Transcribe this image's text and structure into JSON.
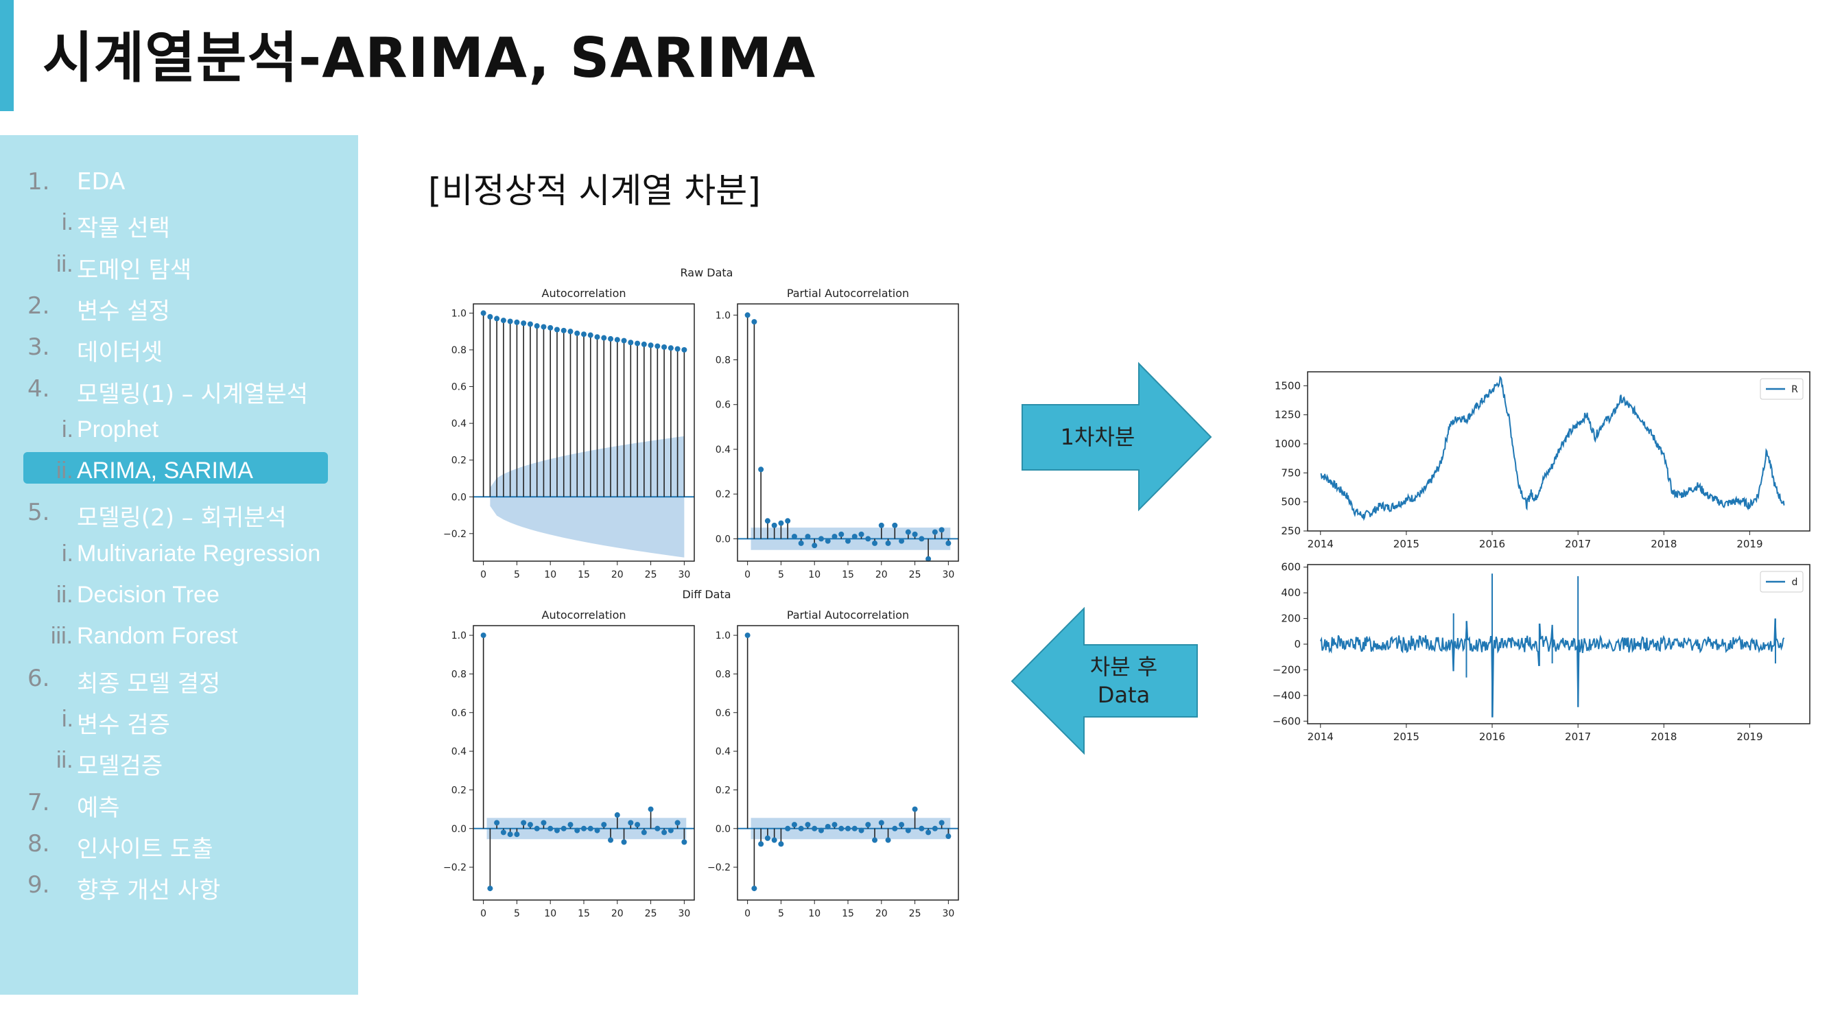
{
  "slide": {
    "title": "시계열분석-ARIMA, SARIMA",
    "section_title": "[비정상적 시계열 차분]"
  },
  "sidebar": {
    "items": [
      {
        "num": "1.",
        "label": "EDA",
        "level": 1
      },
      {
        "num": "i.",
        "label": "작물 선택",
        "level": 2
      },
      {
        "num": "ii.",
        "label": "도메인 탐색",
        "level": 2
      },
      {
        "num": "2.",
        "label": "변수 설정",
        "level": 1
      },
      {
        "num": "3.",
        "label": "데이터셋",
        "level": 1
      },
      {
        "num": "4.",
        "label": "모델링(1) – 시계열분석",
        "level": 1
      },
      {
        "num": "i.",
        "label": "Prophet",
        "level": 2
      },
      {
        "num": "ii.",
        "label": "ARIMA, SARIMA",
        "level": 2,
        "active": true
      },
      {
        "num": "5.",
        "label": "모델링(2) – 회귀분석",
        "level": 1
      },
      {
        "num": "i.",
        "label": "Multivariate Regression",
        "level": 2
      },
      {
        "num": "ii.",
        "label": "Decision Tree",
        "level": 2
      },
      {
        "num": "iii.",
        "label": "Random Forest",
        "level": 2
      },
      {
        "num": "6.",
        "label": "최종 모델 결정",
        "level": 1
      },
      {
        "num": "i.",
        "label": "변수 검증",
        "level": 2
      },
      {
        "num": "ii.",
        "label": "모델검증",
        "level": 2
      },
      {
        "num": "7.",
        "label": "예측",
        "level": 1
      },
      {
        "num": "8.",
        "label": "인사이트 도출",
        "level": 1
      },
      {
        "num": "9.",
        "label": "향후 개선 사항",
        "level": 1
      }
    ]
  },
  "arrows": {
    "right_label": "1차차분",
    "left_label_line1": "차분 후",
    "left_label_line2": "Data",
    "fill": "#3fb5d3"
  },
  "colors": {
    "accent": "#3fb5d3",
    "sidebar_bg": "#b2e3ee",
    "series": "#1f77b4",
    "confidence_band": "#aecde8"
  },
  "chart_data": [
    {
      "type": "bar",
      "group_title": "Raw Data",
      "title": "Autocorrelation",
      "x": [
        0,
        1,
        2,
        3,
        4,
        5,
        6,
        7,
        8,
        9,
        10,
        11,
        12,
        13,
        14,
        15,
        16,
        17,
        18,
        19,
        20,
        21,
        22,
        23,
        24,
        25,
        26,
        27,
        28,
        29,
        30
      ],
      "values": [
        1.0,
        0.98,
        0.97,
        0.96,
        0.955,
        0.95,
        0.945,
        0.94,
        0.93,
        0.925,
        0.92,
        0.91,
        0.905,
        0.9,
        0.89,
        0.885,
        0.88,
        0.87,
        0.865,
        0.86,
        0.855,
        0.85,
        0.84,
        0.835,
        0.83,
        0.825,
        0.82,
        0.815,
        0.81,
        0.805,
        0.8
      ],
      "confidence_upper_end": 0.33,
      "ylim": [
        -0.35,
        1.05
      ],
      "yticks": [
        -0.2,
        0.0,
        0.2,
        0.4,
        0.6,
        0.8,
        1.0
      ],
      "ytick_labels": [
        "−0.2",
        "0.0",
        "0.2",
        "0.4",
        "0.6",
        "0.8",
        "1.0"
      ],
      "xticks": [
        0,
        5,
        10,
        15,
        20,
        25,
        30
      ]
    },
    {
      "type": "bar",
      "title": "Partial Autocorrelation",
      "x": [
        0,
        1,
        2,
        3,
        4,
        5,
        6,
        7,
        8,
        9,
        10,
        11,
        12,
        13,
        14,
        15,
        16,
        17,
        18,
        19,
        20,
        21,
        22,
        23,
        24,
        25,
        26,
        27,
        28,
        29,
        30
      ],
      "values": [
        1.0,
        0.97,
        0.31,
        0.08,
        0.06,
        0.07,
        0.08,
        0.01,
        -0.02,
        0.01,
        -0.03,
        0.0,
        -0.01,
        0.01,
        0.02,
        -0.01,
        0.01,
        0.02,
        0.0,
        -0.02,
        0.06,
        -0.02,
        0.06,
        -0.01,
        0.03,
        0.02,
        0.0,
        -0.09,
        0.03,
        0.04,
        -0.02
      ],
      "confidence": 0.05,
      "ylim": [
        -0.1,
        1.05
      ],
      "yticks": [
        0.0,
        0.2,
        0.4,
        0.6,
        0.8,
        1.0
      ],
      "ytick_labels": [
        "0.0",
        "0.2",
        "0.4",
        "0.6",
        "0.8",
        "1.0"
      ],
      "xticks": [
        0,
        5,
        10,
        15,
        20,
        25,
        30
      ]
    },
    {
      "type": "bar",
      "group_title": "Diff Data",
      "title": "Autocorrelation",
      "x": [
        0,
        1,
        2,
        3,
        4,
        5,
        6,
        7,
        8,
        9,
        10,
        11,
        12,
        13,
        14,
        15,
        16,
        17,
        18,
        19,
        20,
        21,
        22,
        23,
        24,
        25,
        26,
        27,
        28,
        29,
        30
      ],
      "values": [
        1.0,
        -0.31,
        0.03,
        -0.02,
        -0.03,
        -0.03,
        0.03,
        0.02,
        0.0,
        0.03,
        0.0,
        -0.01,
        0.0,
        0.02,
        -0.01,
        0.0,
        0.0,
        -0.01,
        0.02,
        -0.06,
        0.07,
        -0.07,
        0.03,
        0.02,
        -0.02,
        0.1,
        0.0,
        -0.02,
        -0.01,
        0.03,
        -0.07
      ],
      "confidence": 0.055,
      "ylim": [
        -0.37,
        1.05
      ],
      "yticks": [
        -0.2,
        0.0,
        0.2,
        0.4,
        0.6,
        0.8,
        1.0
      ],
      "ytick_labels": [
        "−0.2",
        "0.0",
        "0.2",
        "0.4",
        "0.6",
        "0.8",
        "1.0"
      ],
      "xticks": [
        0,
        5,
        10,
        15,
        20,
        25,
        30
      ]
    },
    {
      "type": "bar",
      "title": "Partial Autocorrelation",
      "x": [
        0,
        1,
        2,
        3,
        4,
        5,
        6,
        7,
        8,
        9,
        10,
        11,
        12,
        13,
        14,
        15,
        16,
        17,
        18,
        19,
        20,
        21,
        22,
        23,
        24,
        25,
        26,
        27,
        28,
        29,
        30
      ],
      "values": [
        1.0,
        -0.31,
        -0.08,
        -0.05,
        -0.06,
        -0.08,
        0.0,
        0.02,
        0.0,
        0.02,
        0.0,
        -0.01,
        0.01,
        0.02,
        0.0,
        0.0,
        0.0,
        -0.01,
        0.02,
        -0.06,
        0.03,
        -0.06,
        0.0,
        0.02,
        -0.01,
        0.1,
        0.0,
        -0.02,
        0.0,
        0.03,
        -0.04
      ],
      "confidence": 0.055,
      "ylim": [
        -0.37,
        1.05
      ],
      "yticks": [
        -0.2,
        0.0,
        0.2,
        0.4,
        0.6,
        0.8,
        1.0
      ],
      "ytick_labels": [
        "−0.2",
        "0.0",
        "0.2",
        "0.4",
        "0.6",
        "0.8",
        "1.0"
      ],
      "xticks": [
        0,
        5,
        10,
        15,
        20,
        25,
        30
      ]
    },
    {
      "type": "line",
      "legend": "R",
      "legend_position": "top-right",
      "x_range": [
        2013.85,
        2019.7
      ],
      "xticks": [
        2014,
        2015,
        2016,
        2017,
        2018,
        2019
      ],
      "ylim": [
        250,
        1620
      ],
      "yticks": [
        250,
        500,
        750,
        1000,
        1250,
        1500
      ],
      "x": [
        2014.0,
        2014.1,
        2014.2,
        2014.3,
        2014.4,
        2014.5,
        2014.6,
        2014.7,
        2014.8,
        2014.9,
        2015.0,
        2015.1,
        2015.2,
        2015.3,
        2015.4,
        2015.5,
        2015.6,
        2015.7,
        2015.8,
        2015.9,
        2016.0,
        2016.1,
        2016.2,
        2016.3,
        2016.4,
        2016.45,
        2016.5,
        2016.6,
        2016.7,
        2016.8,
        2016.9,
        2017.0,
        2017.1,
        2017.2,
        2017.3,
        2017.4,
        2017.5,
        2017.6,
        2017.7,
        2017.8,
        2017.9,
        2018.0,
        2018.1,
        2018.2,
        2018.3,
        2018.4,
        2018.5,
        2018.6,
        2018.7,
        2018.8,
        2018.9,
        2019.0,
        2019.1,
        2019.2,
        2019.3,
        2019.4
      ],
      "values": [
        740,
        690,
        620,
        560,
        420,
        380,
        410,
        470,
        450,
        480,
        520,
        540,
        590,
        700,
        830,
        1150,
        1230,
        1210,
        1300,
        1380,
        1460,
        1550,
        1200,
        680,
        470,
        580,
        520,
        700,
        810,
        990,
        1090,
        1170,
        1250,
        1060,
        1190,
        1240,
        1390,
        1320,
        1250,
        1150,
        1030,
        890,
        580,
        560,
        600,
        640,
        560,
        520,
        480,
        500,
        510,
        470,
        560,
        940,
        620,
        470
      ],
      "approximate": true
    },
    {
      "type": "line",
      "legend": "d",
      "legend_position": "top-right",
      "x_range": [
        2013.85,
        2019.7
      ],
      "xticks": [
        2014,
        2015,
        2016,
        2017,
        2018,
        2019
      ],
      "ylim": [
        -620,
        620
      ],
      "yticks": [
        -600,
        -400,
        -200,
        0,
        200,
        400,
        600
      ],
      "ytick_labels": [
        "−600",
        "−400",
        "−200",
        "0",
        "200",
        "400",
        "600"
      ],
      "spikes": [
        {
          "x": 2015.55,
          "up": 240,
          "down": -210
        },
        {
          "x": 2015.7,
          "up": 180,
          "down": -260
        },
        {
          "x": 2016.0,
          "up": 550,
          "down": -570
        },
        {
          "x": 2016.55,
          "up": 160,
          "down": -170
        },
        {
          "x": 2016.7,
          "up": 150,
          "down": -150
        },
        {
          "x": 2017.0,
          "up": 530,
          "down": -490
        },
        {
          "x": 2019.3,
          "up": 200,
          "down": -150
        }
      ],
      "typical_noise_amplitude": 80,
      "approximate": true
    }
  ]
}
